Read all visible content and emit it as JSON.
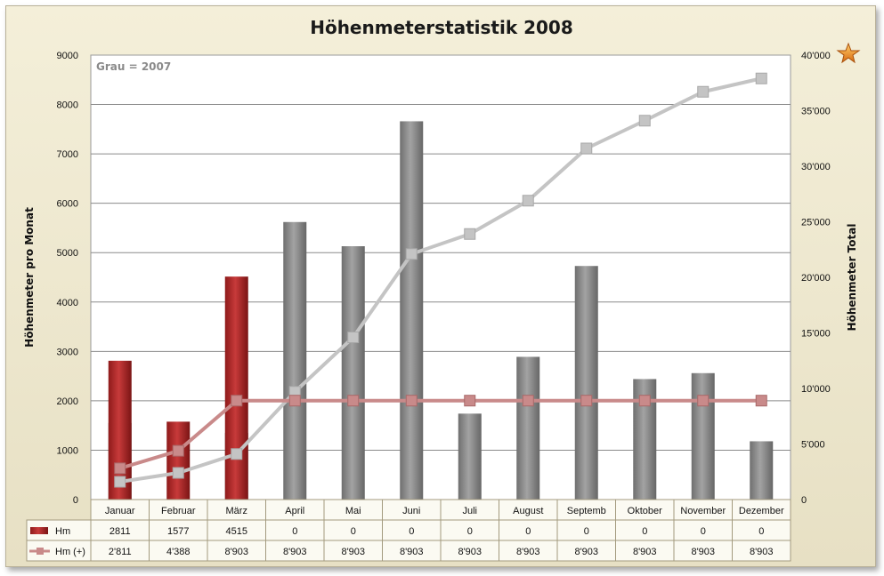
{
  "chart_data": {
    "type": "bar",
    "title": "Höhenmeterstatistik 2008",
    "note": "Grau = 2007",
    "ylabel": "Höhenmeter pro Monat",
    "y2label": "Höhenmeter Total",
    "ylim": [
      0,
      9000
    ],
    "y2lim": [
      0,
      40000
    ],
    "yticks": [
      "0",
      "1000",
      "2000",
      "3000",
      "4000",
      "5000",
      "6000",
      "7000",
      "8000",
      "9000"
    ],
    "y2ticks": [
      "0",
      "5'000",
      "10'000",
      "15'000",
      "20'000",
      "25'000",
      "30'000",
      "35'000",
      "40'000"
    ],
    "categories": [
      "Januar",
      "Februar",
      "März",
      "April",
      "Mai",
      "Juni",
      "Juli",
      "August",
      "Septemb",
      "Oktober",
      "November",
      "Dezember"
    ],
    "grid": true,
    "colors": {
      "bar2008": "#b52a2a",
      "bar2007": "#8c8c8c",
      "line2008": "#c98a8a",
      "line2007": "#c4c4c4"
    },
    "series": [
      {
        "name": "Hm",
        "axis": "left",
        "kind": "bar",
        "values": [
          2811,
          1577,
          4515,
          0,
          0,
          0,
          0,
          0,
          0,
          0,
          0,
          0
        ]
      },
      {
        "name": "Hm (+)",
        "axis": "right",
        "kind": "line",
        "values": [
          2811,
          4388,
          8903,
          8903,
          8903,
          8903,
          8903,
          8903,
          8903,
          8903,
          8903,
          8903
        ]
      },
      {
        "axis": "left",
        "kind": "bar",
        "values": [
          1550,
          0,
          1350,
          5620,
          5130,
          7660,
          1740,
          2890,
          4730,
          2440,
          2560,
          1180
        ]
      },
      {
        "axis": "right",
        "kind": "line",
        "values": [
          1600,
          2400,
          4100,
          9700,
          14600,
          22100,
          23900,
          26900,
          31600,
          34100,
          36700,
          37900
        ]
      }
    ],
    "table": {
      "rows": [
        {
          "label": "Hm",
          "cells": [
            "2811",
            "1577",
            "4515",
            "0",
            "0",
            "0",
            "0",
            "0",
            "0",
            "0",
            "0",
            "0"
          ]
        },
        {
          "label": "Hm (+)",
          "cells": [
            "2'811",
            "4'388",
            "8'903",
            "8'903",
            "8'903",
            "8'903",
            "8'903",
            "8'903",
            "8'903",
            "8'903",
            "8'903",
            "8'903"
          ]
        }
      ]
    }
  },
  "decoration": {
    "icon": "star-icon",
    "color": "#e08a1e"
  }
}
